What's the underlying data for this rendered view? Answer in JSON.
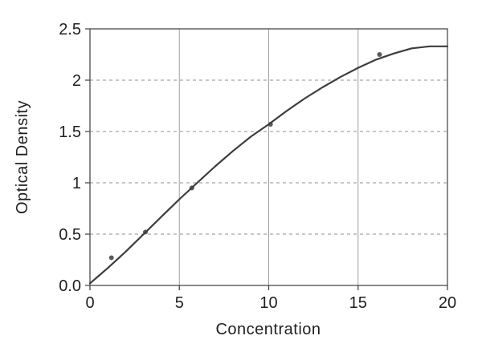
{
  "chart": {
    "xlabel": "Concentration",
    "ylabel": "Optical Density"
  },
  "chart_data": {
    "type": "scatter",
    "title": "",
    "xlabel": "Concentration",
    "ylabel": "Optical Density",
    "xlim": [
      0,
      20
    ],
    "ylim": [
      0,
      2.5
    ],
    "x_ticks": [
      0,
      5,
      10,
      15,
      20
    ],
    "x_tick_labels": [
      "0",
      "5",
      "10",
      "15",
      "20"
    ],
    "y_ticks": [
      0,
      0.5,
      1,
      1.5,
      2,
      2.5
    ],
    "y_tick_labels": [
      "0.0",
      "0.5",
      "1",
      "1.5",
      "2",
      "2.5"
    ],
    "grid": {
      "vertical_solid_x": [
        5,
        10,
        15
      ],
      "horizontal_dashed_y": [
        0.5,
        1,
        1.5,
        2
      ]
    },
    "legend": "none",
    "series": [
      {
        "name": "measured-points",
        "style": "marker",
        "points": [
          [
            1.2,
            0.27
          ],
          [
            3.1,
            0.52
          ],
          [
            5.7,
            0.95
          ],
          [
            10.1,
            1.57
          ],
          [
            16.2,
            2.25
          ]
        ]
      },
      {
        "name": "fitted-curve",
        "style": "line",
        "points": [
          [
            0,
            0.02
          ],
          [
            1,
            0.17
          ],
          [
            2,
            0.33
          ],
          [
            3,
            0.5
          ],
          [
            4,
            0.67
          ],
          [
            5,
            0.84
          ],
          [
            6,
            1.0
          ],
          [
            7,
            1.16
          ],
          [
            8,
            1.31
          ],
          [
            9,
            1.45
          ],
          [
            10,
            1.57
          ],
          [
            11,
            1.7
          ],
          [
            12,
            1.82
          ],
          [
            13,
            1.93
          ],
          [
            14,
            2.03
          ],
          [
            15,
            2.12
          ],
          [
            16,
            2.2
          ],
          [
            17,
            2.26
          ],
          [
            18,
            2.31
          ],
          [
            19,
            2.33
          ],
          [
            20,
            2.33
          ]
        ]
      }
    ],
    "colors": {
      "curve": "#3d3d3d",
      "marker": "#5a5a5a",
      "grid_vertical": "#a0a0a0",
      "grid_horizontal": "#8f8f8f",
      "axis_box": "#4a4a4a",
      "text": "#1f1f1f"
    }
  }
}
